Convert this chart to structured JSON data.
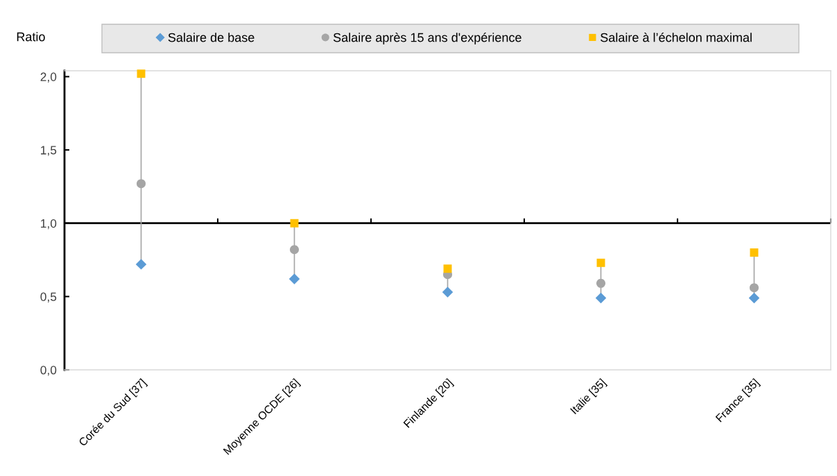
{
  "chart_data": {
    "type": "scatter",
    "ylabel": "Ratio",
    "categories": [
      "Corée du Sud [37]",
      "Moyenne OCDE [26]",
      "Finlande [20]",
      "Italie [35]",
      "France [35]"
    ],
    "series": [
      {
        "name": "Salaire de base",
        "color": "#5b9bd5",
        "marker": "diamond",
        "values": [
          0.72,
          0.62,
          0.53,
          0.49,
          0.49
        ]
      },
      {
        "name": "Salaire après 15 ans d'expérience",
        "color": "#a5a5a5",
        "marker": "circle",
        "values": [
          1.27,
          0.82,
          0.65,
          0.59,
          0.56
        ]
      },
      {
        "name": "Salaire à l’échelon maximal",
        "color": "#ffc000",
        "marker": "square",
        "values": [
          2.02,
          1.0,
          0.69,
          0.73,
          0.8
        ]
      }
    ],
    "ylim": [
      0,
      2.04
    ],
    "yticks": [
      {
        "value": 0,
        "label": "0,0"
      },
      {
        "value": 0.5,
        "label": "0,5"
      },
      {
        "value": 1.0,
        "label": "1,0"
      },
      {
        "value": 1.5,
        "label": "1,5"
      },
      {
        "value": 2.0,
        "label": "2,0"
      }
    ],
    "ref_lines": [
      {
        "axis": "y",
        "value": 1.0,
        "color": "#000000"
      }
    ],
    "grid": false,
    "legend": "top"
  }
}
